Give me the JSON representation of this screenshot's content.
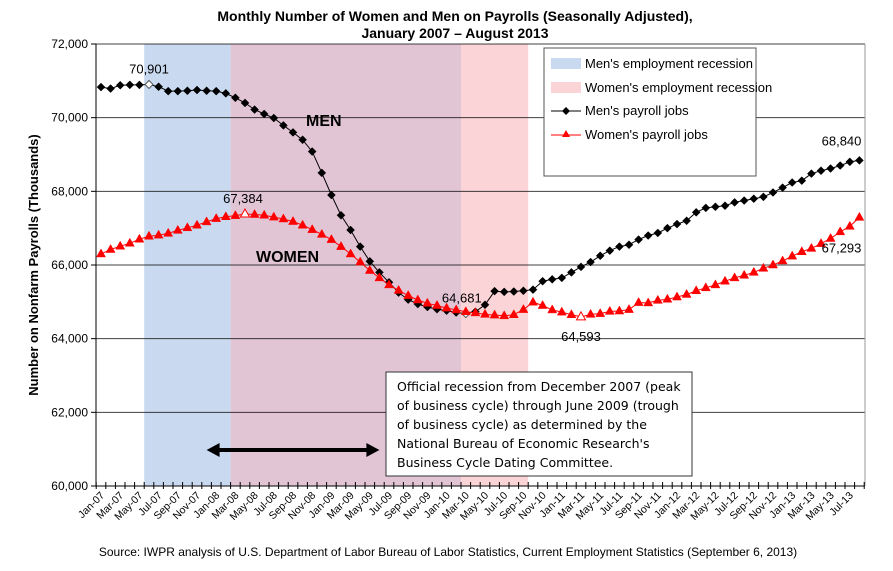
{
  "chart_data": {
    "type": "line",
    "title": "Monthly Number of Women and Men on Payrolls (Seasonally Adjusted),",
    "subtitle": "January 2007 – August 2013",
    "xlabel": "",
    "ylabel": "Number on Nonfarm Payrolls (Thousands)",
    "ylim": [
      60000,
      72000
    ],
    "y_ticks": [
      "60,000",
      "62,000",
      "64,000",
      "66,000",
      "68,000",
      "70,000",
      "72,000"
    ],
    "y_tick_values": [
      60000,
      62000,
      64000,
      66000,
      68000,
      70000,
      72000
    ],
    "grid": true,
    "x_tick_labels": [
      "Jan-07",
      "Mar-07",
      "May-07",
      "Jul-07",
      "Sep-07",
      "Nov-07",
      "Jan-08",
      "Mar-08",
      "May-08",
      "Jul-08",
      "Sep-08",
      "Nov-08",
      "Jan-09",
      "Mar-09",
      "May-09",
      "Jul-09",
      "Sep-09",
      "Nov-09",
      "Jan-10",
      "Mar-10",
      "May-10",
      "Jul-10",
      "Sep-10",
      "Nov-10",
      "Jan-11",
      "Mar-11",
      "May-11",
      "Jul-11",
      "Sep-11",
      "Nov-11",
      "Jan-12",
      "Mar-12",
      "May-12",
      "Jul-12",
      "Sep-12",
      "Nov-12",
      "Jan-13",
      "Mar-13",
      "May-13",
      "Jul-13"
    ],
    "x_start": "Jan-07",
    "x_end": "Aug-13",
    "shaded_regions": [
      {
        "name": "Men's employment recession",
        "start_month_index": 4.5,
        "end_month_index": 37.5,
        "color": "#c9daf0"
      },
      {
        "name": "Women's employment recession",
        "start_month_index": 13.5,
        "end_month_index": 44.5,
        "color": "#fad4d6"
      }
    ],
    "overlap_color": "#e2c5d5",
    "series": [
      {
        "name": "Men's payroll jobs",
        "color": "#000000",
        "marker": "diamond",
        "values": [
          70830,
          70790,
          70880,
          70890,
          70890,
          70901,
          70840,
          70720,
          70720,
          70730,
          70750,
          70730,
          70720,
          70660,
          70540,
          70400,
          70220,
          70100,
          69990,
          69790,
          69600,
          69400,
          69080,
          68500,
          67900,
          67350,
          66950,
          66500,
          66100,
          65800,
          65530,
          65250,
          65060,
          64940,
          64860,
          64800,
          64760,
          64710,
          64681,
          64730,
          64920,
          65290,
          65270,
          65280,
          65300,
          65330,
          65560,
          65610,
          65650,
          65800,
          65950,
          66080,
          66250,
          66390,
          66500,
          66550,
          66690,
          66800,
          66870,
          67000,
          67110,
          67200,
          67430,
          67550,
          67580,
          67610,
          67700,
          67750,
          67800,
          67850,
          67970,
          68100,
          68240,
          68290,
          68480,
          68560,
          68620,
          68700,
          68800,
          68840
        ],
        "annotations": [
          {
            "month_index": 5,
            "label": "70,901"
          },
          {
            "month_index": 38,
            "label": "64,681"
          },
          {
            "month_index": 79,
            "label": "68,840"
          }
        ]
      },
      {
        "name": "Women's payroll jobs",
        "color": "#ff0000",
        "marker": "triangle",
        "values": [
          66300,
          66420,
          66510,
          66590,
          66700,
          66780,
          66810,
          66860,
          66940,
          67010,
          67080,
          67170,
          67260,
          67310,
          67340,
          67384,
          67370,
          67350,
          67300,
          67250,
          67180,
          67080,
          66960,
          66830,
          66690,
          66500,
          66300,
          66080,
          65850,
          65650,
          65460,
          65310,
          65170,
          65050,
          64960,
          64900,
          64830,
          64780,
          64730,
          64700,
          64660,
          64640,
          64620,
          64650,
          64790,
          64990,
          64900,
          64780,
          64720,
          64650,
          64593,
          64660,
          64680,
          64740,
          64750,
          64790,
          64980,
          64970,
          65040,
          65070,
          65130,
          65200,
          65300,
          65380,
          65460,
          65560,
          65650,
          65720,
          65800,
          65910,
          66000,
          66110,
          66240,
          66360,
          66450,
          66580,
          66720,
          66900,
          67050,
          67293
        ],
        "annotations": [
          {
            "month_index": 15,
            "label": "67,384"
          },
          {
            "month_index": 50,
            "label": "64,593"
          },
          {
            "month_index": 79,
            "label": "67,293"
          }
        ]
      }
    ],
    "series_labels": [
      "MEN",
      "WOMEN"
    ],
    "legend": {
      "position": "top-right",
      "entries": [
        "Men's employment recession",
        "Women's employment recession",
        "Men's payroll jobs",
        "Women's payroll jobs"
      ]
    },
    "note": {
      "lines": [
        "Official recession from December 2007 (peak",
        "of business cycle) through June 2009 (trough",
        "of business cycle) as determined by the",
        "National Bureau of Economic Research's",
        "Business Cycle Dating Committee."
      ],
      "arrow_start_month_index": 11,
      "arrow_end_month_index": 29
    },
    "source": "Source: IWPR analysis of U.S. Department of Labor Bureau of Labor Statistics, Current Employment Statistics (September 6, 2013)"
  }
}
